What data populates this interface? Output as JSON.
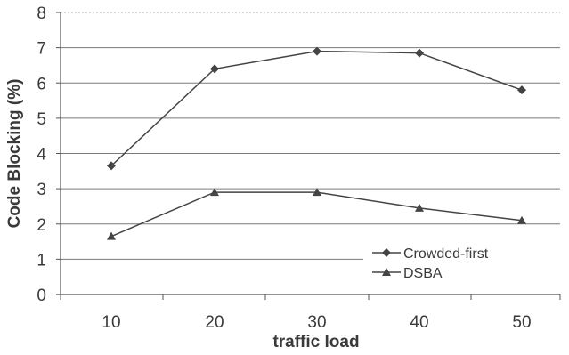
{
  "chart_data": {
    "type": "line",
    "title": "",
    "xlabel": "traffic load",
    "ylabel": "Code Blocking (%)",
    "x": [
      10,
      20,
      30,
      40,
      50
    ],
    "ylim": [
      0,
      8
    ],
    "yticks": [
      0,
      1,
      2,
      3,
      4,
      5,
      6,
      7,
      8
    ],
    "grid": true,
    "legend_position": "bottom-right",
    "series": [
      {
        "name": "Crowded-first",
        "marker": "diamond",
        "color": "#444444",
        "values": [
          3.65,
          6.4,
          6.9,
          6.85,
          5.8
        ]
      },
      {
        "name": "DSBA",
        "marker": "triangle",
        "color": "#444444",
        "values": [
          1.65,
          2.9,
          2.9,
          2.45,
          2.1
        ]
      }
    ]
  }
}
